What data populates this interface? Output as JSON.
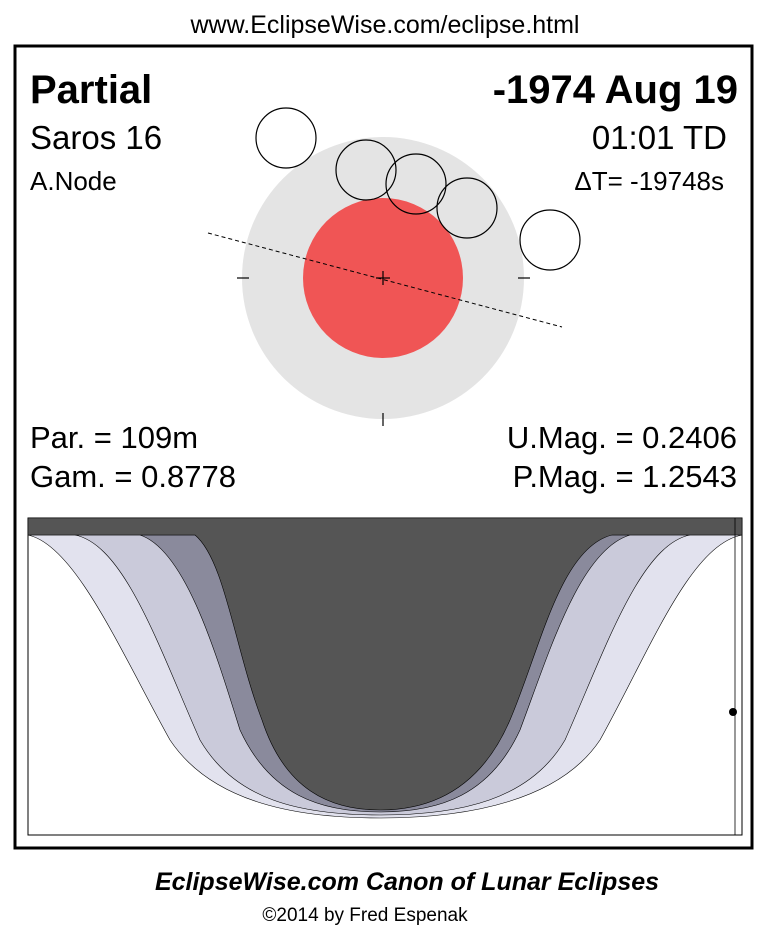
{
  "header": {
    "url": "www.EclipseWise.com/eclipse.html"
  },
  "eclipse": {
    "type": "Partial",
    "date": "-1974 Aug 19",
    "saros": "Saros  16",
    "time": "01:01 TD",
    "node": "A.Node",
    "delta_t": "ΔT= -19748s"
  },
  "parameters": {
    "duration": "Par. = 109m",
    "umbral_magnitude": "U.Mag. = 0.2406",
    "gamma": "Gam. = 0.8778",
    "penumbral_magnitude": "P.Mag. = 1.2543"
  },
  "footer": {
    "title": "EclipseWise.com Canon of Lunar Eclipses",
    "copyright": "©2014 by Fred Espenak"
  }
}
